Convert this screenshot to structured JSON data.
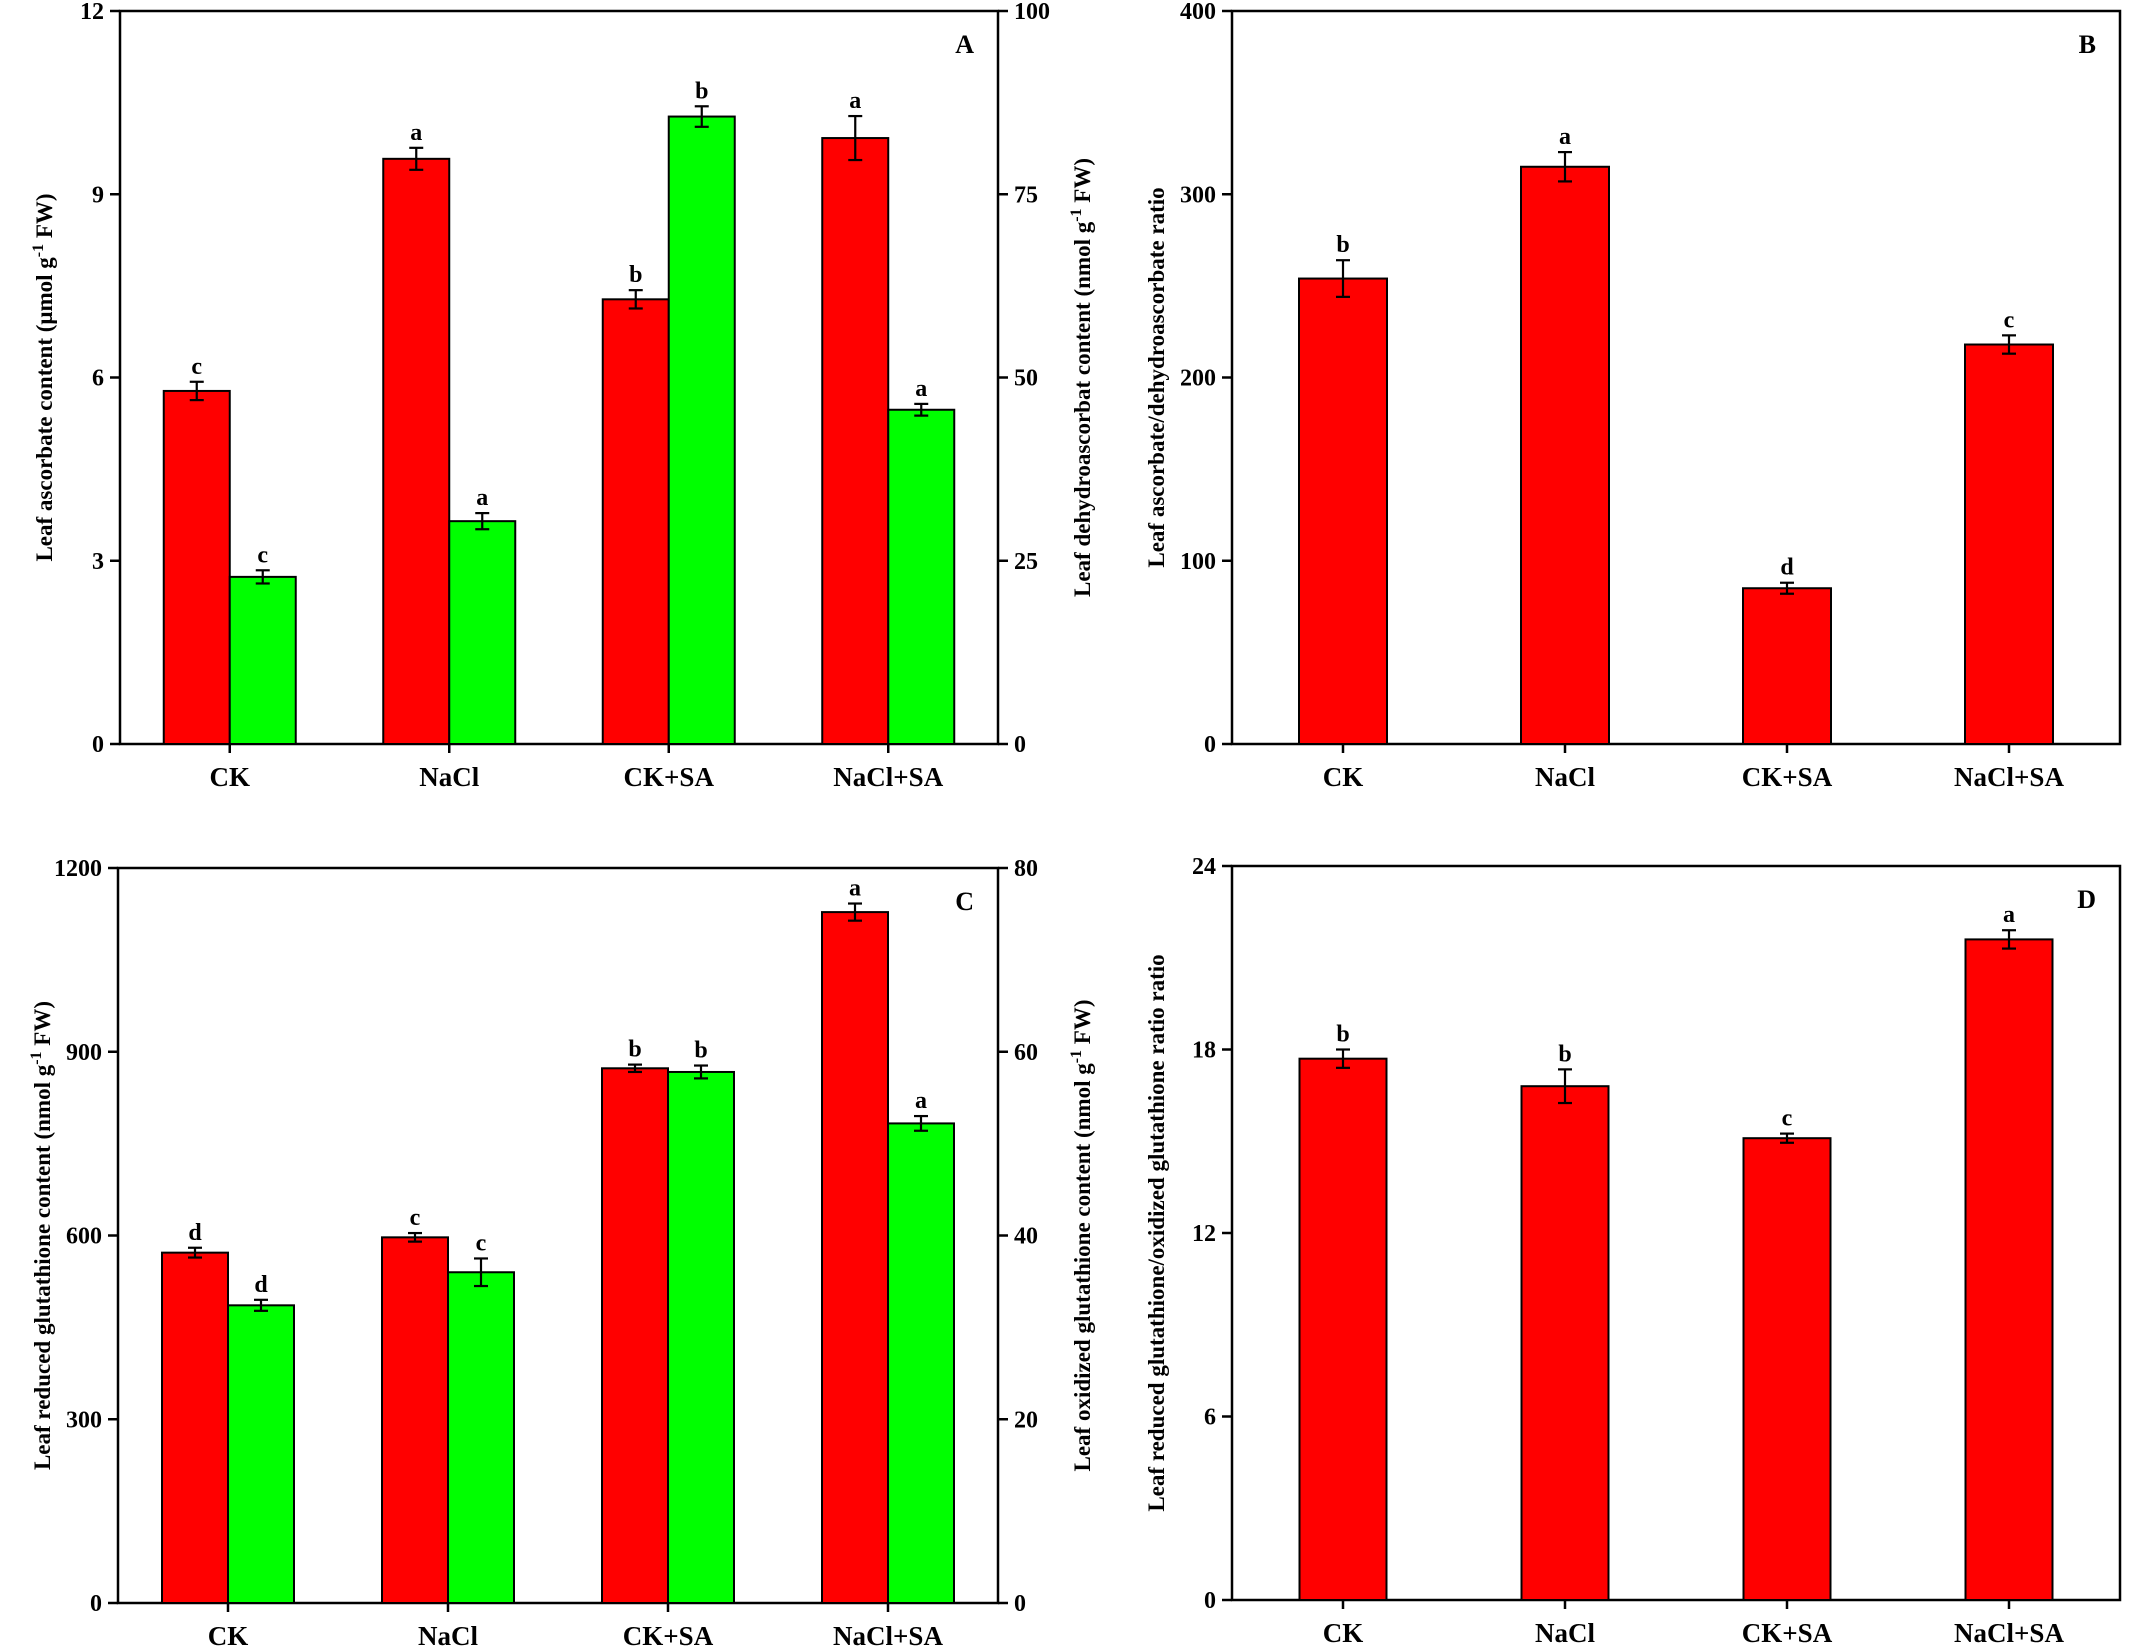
{
  "colors": {
    "primary_bar": "#ff0000",
    "secondary_bar": "#00ff00",
    "axis": "#000000"
  },
  "chart_data": [
    {
      "panel": "A",
      "type": "bar",
      "categories": [
        "CK",
        "NaCl",
        "CK+SA",
        "NaCl+SA"
      ],
      "series": [
        {
          "name": "Leaf ascorbate content",
          "axis": "left",
          "values": [
            5.78,
            9.58,
            7.28,
            9.92
          ],
          "errors": [
            0.15,
            0.18,
            0.15,
            0.36
          ],
          "labels": [
            "c",
            "a",
            "b",
            "a"
          ]
        },
        {
          "name": "Leaf dehydroascorbat content",
          "axis": "right",
          "values": [
            22.8,
            30.4,
            85.6,
            45.6
          ],
          "errors": [
            0.9,
            1.1,
            1.4,
            0.8
          ],
          "labels": [
            "c",
            "a",
            "b",
            "a"
          ]
        }
      ],
      "ylabel": "Leaf ascorbate content (μmol g⁻¹ FW)",
      "ylabel_right": "Leaf dehydroascorbat content (nmol g⁻¹ FW)",
      "ylim": [
        0,
        12
      ],
      "yticks": [
        0,
        3,
        6,
        9,
        12
      ],
      "ylim_right": [
        0,
        100
      ],
      "yticks_right": [
        0,
        25,
        50,
        75,
        100
      ]
    },
    {
      "panel": "B",
      "type": "bar",
      "categories": [
        "CK",
        "NaCl",
        "CK+SA",
        "NaCl+SA"
      ],
      "series": [
        {
          "name": "Leaf ascorbate/dehydroascorbate ratio",
          "axis": "left",
          "values": [
            254,
            315,
            85,
            218
          ],
          "errors": [
            10,
            8,
            3,
            5
          ],
          "labels": [
            "b",
            "a",
            "d",
            "c"
          ]
        }
      ],
      "ylabel": "Leaf ascorbate/dehydroascorbate ratio",
      "ylim": [
        0,
        400
      ],
      "yticks": [
        0,
        100,
        200,
        300,
        400
      ]
    },
    {
      "panel": "C",
      "type": "bar",
      "categories": [
        "CK",
        "NaCl",
        "CK+SA",
        "NaCl+SA"
      ],
      "series": [
        {
          "name": "Leaf reduced glutathione content",
          "axis": "left",
          "values": [
            572,
            597,
            873,
            1128
          ],
          "errors": [
            8,
            7,
            6,
            14
          ],
          "labels": [
            "d",
            "c",
            "b",
            "a"
          ]
        },
        {
          "name": "Leaf oxidized glutathione content",
          "axis": "right",
          "values": [
            32.4,
            36.0,
            57.8,
            52.2
          ],
          "errors": [
            0.6,
            1.5,
            0.7,
            0.8
          ],
          "labels": [
            "d",
            "c",
            "b",
            "a"
          ]
        }
      ],
      "ylabel": "Leaf reduced glutathione content (nmol g⁻¹ FW)",
      "ylabel_right": "Leaf oxidized glutathione content (nmol g⁻¹ FW)",
      "ylim": [
        0,
        1200
      ],
      "yticks": [
        0,
        300,
        600,
        900,
        1200
      ],
      "ylim_right": [
        0,
        80
      ],
      "yticks_right": [
        0,
        20,
        40,
        60,
        80
      ]
    },
    {
      "panel": "D",
      "type": "bar",
      "categories": [
        "CK",
        "NaCl",
        "CK+SA",
        "NaCl+SA"
      ],
      "series": [
        {
          "name": "Leaf reduced glutathione/oxidized glutathione ratio",
          "axis": "left",
          "values": [
            17.7,
            16.8,
            15.1,
            21.6
          ],
          "errors": [
            0.3,
            0.55,
            0.15,
            0.3
          ],
          "labels": [
            "b",
            "b",
            "c",
            "a"
          ]
        }
      ],
      "ylabel": "Leaf reduced glutathione/oxidized glutathione ratio ratio",
      "ylim": [
        0,
        24
      ],
      "yticks": [
        0,
        6,
        12,
        18,
        24
      ]
    }
  ]
}
